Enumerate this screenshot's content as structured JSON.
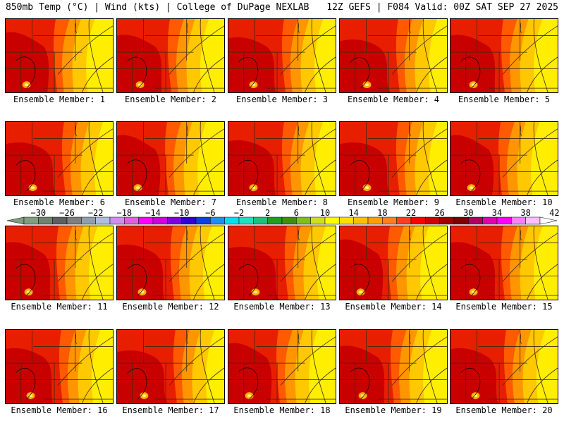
{
  "header": {
    "left": "850mb Temp (°C) | Wind (kts) | College of DuPage NEXLAB",
    "right": "12Z GEFS | F084 Valid: 00Z SAT SEP 27 2025"
  },
  "panels": [
    {
      "label": "Ensemble Member: 1",
      "member": 1,
      "variant": 0
    },
    {
      "label": "Ensemble Member: 2",
      "member": 2,
      "variant": 1
    },
    {
      "label": "Ensemble Member: 3",
      "member": 3,
      "variant": 2
    },
    {
      "label": "Ensemble Member: 4",
      "member": 4,
      "variant": 3
    },
    {
      "label": "Ensemble Member: 5",
      "member": 5,
      "variant": 1
    },
    {
      "label": "Ensemble Member: 6",
      "member": 6,
      "variant": 3
    },
    {
      "label": "Ensemble Member: 7",
      "member": 7,
      "variant": 0
    },
    {
      "label": "Ensemble Member: 8",
      "member": 8,
      "variant": 2
    },
    {
      "label": "Ensemble Member: 9",
      "member": 9,
      "variant": 3
    },
    {
      "label": "Ensemble Member: 10",
      "member": 10,
      "variant": 0
    },
    {
      "label": "Ensemble Member: 11",
      "member": 11,
      "variant": 1
    },
    {
      "label": "Ensemble Member: 12",
      "member": 12,
      "variant": 2
    },
    {
      "label": "Ensemble Member: 13",
      "member": 13,
      "variant": 3
    },
    {
      "label": "Ensemble Member: 14",
      "member": 14,
      "variant": 0
    },
    {
      "label": "Ensemble Member: 15",
      "member": 15,
      "variant": 1
    },
    {
      "label": "Ensemble Member: 16",
      "member": 16,
      "variant": 2
    },
    {
      "label": "Ensemble Member: 17",
      "member": 17,
      "variant": 3
    },
    {
      "label": "Ensemble Member: 18",
      "member": 18,
      "variant": 0
    },
    {
      "label": "Ensemble Member: 19",
      "member": 19,
      "variant": 1
    },
    {
      "label": "Ensemble Member: 20",
      "member": 20,
      "variant": 2
    }
  ],
  "colorbar": {
    "unit": "°C",
    "tick_labels": [
      "-30",
      "-26",
      "-22",
      "-18",
      "-14",
      "-10",
      "-6",
      "-2",
      "2",
      "6",
      "10",
      "14",
      "18",
      "22",
      "26",
      "30",
      "34",
      "38",
      "42"
    ],
    "colors": [
      "#7f9f7f",
      "#6e846e",
      "#5f5f5f",
      "#7f7f7f",
      "#8f9faf",
      "#afbfdf",
      "#cf8fef",
      "#df5fdf",
      "#ff00ff",
      "#cf00df",
      "#7f00df",
      "#2f00cf",
      "#0f3fdf",
      "#1f8fef",
      "#00dfef",
      "#1fdfbf",
      "#1fbf7f",
      "#1f9f1f",
      "#3f8f0f",
      "#7fbf1f",
      "#cfdf1f",
      "#ffff00",
      "#ffdf00",
      "#ffbf00",
      "#ff9f00",
      "#ff7f1f",
      "#ff3f1f",
      "#ff0000",
      "#cf0000",
      "#a00000",
      "#7f0000",
      "#af005f",
      "#df00af",
      "#ff00ff",
      "#ff7fff",
      "#ffbfff"
    ]
  },
  "map_palette": {
    "hot": "#c80000",
    "warm": "#e81e00",
    "mid": "#ff5a00",
    "orange": "#ff9600",
    "amber": "#ffc800",
    "yellow": "#ffee00",
    "lines": "#3a2a10"
  }
}
